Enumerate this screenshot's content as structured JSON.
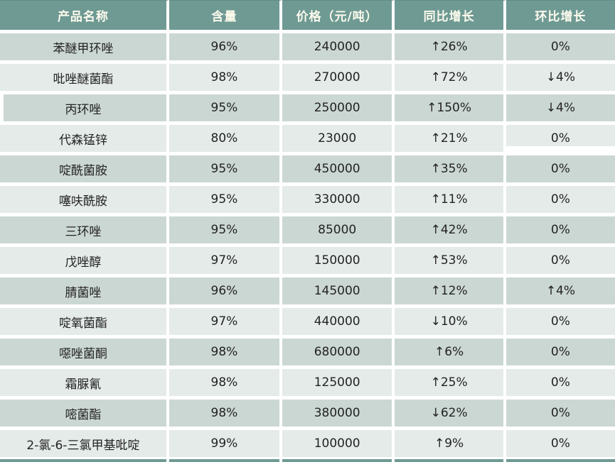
{
  "colors": {
    "header_bg": "#6f9a94",
    "header_text": "#fdfbee",
    "row_dark": "#cbd7d3",
    "row_light": "#e4ebe8",
    "cell_text": "#232323",
    "grid_gap": "#ffffff"
  },
  "chart_data": {
    "type": "table",
    "columns": [
      "产品名称",
      "含量",
      "价格（元/吨）",
      "同比增长",
      "环比增长"
    ],
    "rows": [
      [
        "苯醚甲环唑",
        "96%",
        "240000",
        "↑26%",
        "0%"
      ],
      [
        "吡唑醚菌酯",
        "98%",
        "270000",
        "↑72%",
        "↓4%"
      ],
      [
        "丙环唑",
        "95%",
        "250000",
        "↑150%",
        "↓4%"
      ],
      [
        "代森锰锌",
        "80%",
        "23000",
        "↑21%",
        "0%"
      ],
      [
        "啶酰菌胺",
        "95%",
        "450000",
        "↑35%",
        "0%"
      ],
      [
        "噻呋酰胺",
        "95%",
        "330000",
        "↑11%",
        "0%"
      ],
      [
        "三环唑",
        "95%",
        "85000",
        "↑42%",
        "0%"
      ],
      [
        "戊唑醇",
        "97%",
        "150000",
        "↑53%",
        "0%"
      ],
      [
        "腈菌唑",
        "96%",
        "145000",
        "↑12%",
        "↑4%"
      ],
      [
        "啶氧菌酯",
        "97%",
        "440000",
        "↓10%",
        "0%"
      ],
      [
        "噁唑菌酮",
        "98%",
        "680000",
        "↑6%",
        "0%"
      ],
      [
        "霜脲氰",
        "98%",
        "125000",
        "↑25%",
        "0%"
      ],
      [
        "嘧菌酯",
        "98%",
        "380000",
        "↓62%",
        "0%"
      ],
      [
        "2-氯-6-三氯甲基吡啶",
        "99%",
        "100000",
        "↑9%",
        "0%"
      ]
    ]
  }
}
